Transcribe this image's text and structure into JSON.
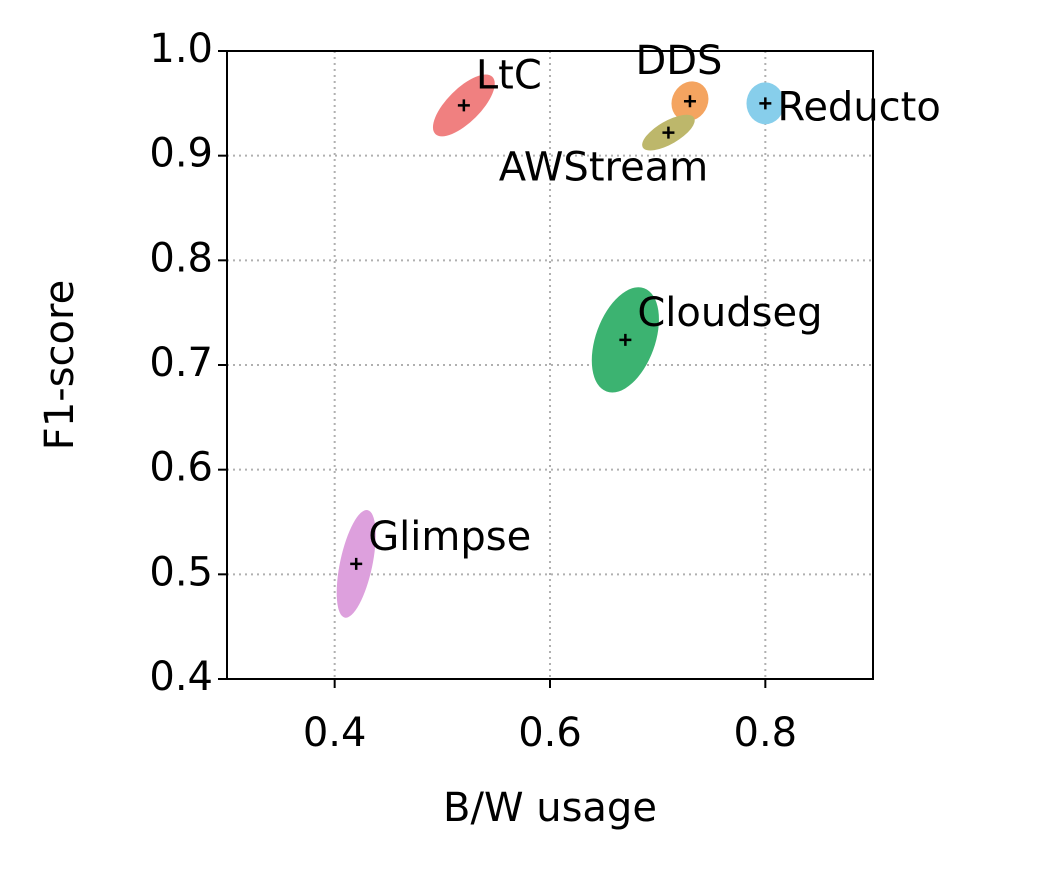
{
  "chart_data": {
    "type": "scatter",
    "xlabel": "B/W usage",
    "ylabel": "F1-score",
    "xlim": [
      0.3,
      0.9
    ],
    "ylim": [
      0.4,
      1.0
    ],
    "xticks": [
      0.4,
      0.6,
      0.8
    ],
    "yticks": [
      0.4,
      0.5,
      0.6,
      0.7,
      0.8,
      0.9,
      {
        "value": 1,
        "label": "1.0"
      }
    ],
    "grid": true,
    "series": [
      {
        "name": "LtC",
        "color": "#f08080",
        "x": 0.52,
        "y": 0.948,
        "width": 0.075,
        "height": 0.032,
        "angle": 45
      },
      {
        "name": "DDS",
        "color": "#f4a460",
        "x": 0.73,
        "y": 0.952,
        "width": 0.038,
        "height": 0.034,
        "angle": 60
      },
      {
        "name": "AWStream",
        "color": "#bdb76b",
        "x": 0.71,
        "y": 0.922,
        "width": 0.055,
        "height": 0.022,
        "angle": 30
      },
      {
        "name": "Reducto",
        "color": "#87ceeb",
        "x": 0.8,
        "y": 0.95,
        "width": 0.035,
        "height": 0.04,
        "angle": 0
      },
      {
        "name": "Cloudseg",
        "color": "#3cb371",
        "x": 0.67,
        "y": 0.724,
        "width": 0.055,
        "height": 0.105,
        "angle": -20
      },
      {
        "name": "Glimpse",
        "color": "#dda0dd",
        "x": 0.42,
        "y": 0.51,
        "width": 0.03,
        "height": 0.105,
        "angle": -12
      }
    ]
  }
}
